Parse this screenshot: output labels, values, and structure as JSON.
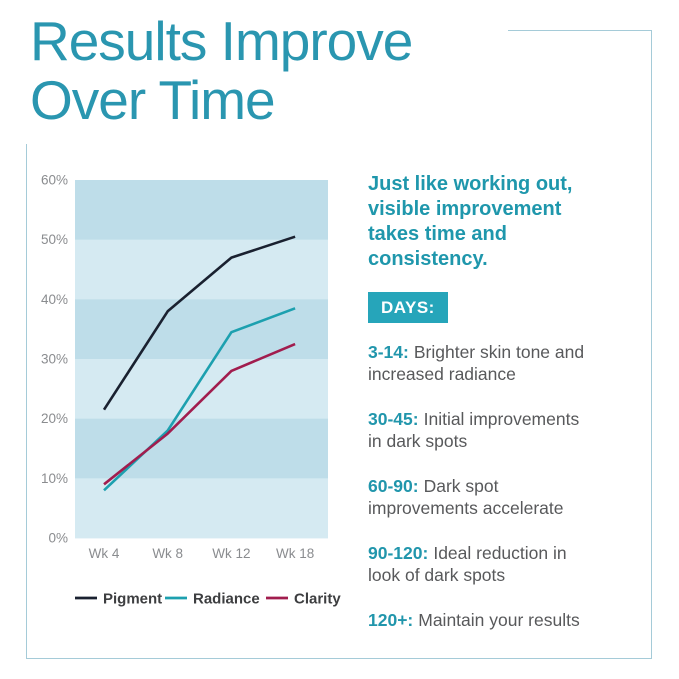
{
  "header": {
    "title": "Results Improve\nOver Time"
  },
  "panel": {
    "intro": "Just like working out,\nvisible improvement\ntakes time and\nconsistency.",
    "badge": "DAYS:",
    "items": [
      {
        "label": "3-14:",
        "text": "Brighter skin tone and\nincreased radiance"
      },
      {
        "label": "30-45:",
        "text": "Initial improvements\nin dark spots"
      },
      {
        "label": "60-90:",
        "text": "Dark spot\nimprovements accelerate"
      },
      {
        "label": "90-120:",
        "text": "Ideal reduction in\nlook of dark spots"
      },
      {
        "label": "120+:",
        "text": "Maintain your results"
      }
    ]
  },
  "colors": {
    "title_teal": "#2a96b0",
    "text_teal": "#2196ac",
    "badge_teal": "#26a5ba",
    "body_gray": "#58595b",
    "axis_gray": "#8a8c8f",
    "frame_border": "#a5cbd8"
  },
  "chart_data": {
    "type": "line",
    "title": "",
    "xlabel": "",
    "ylabel": "",
    "categories": [
      "Wk 4",
      "Wk 8",
      "Wk 12",
      "Wk 18"
    ],
    "yticks": [
      "60%",
      "50%",
      "40%",
      "30%",
      "20%",
      "10%",
      "0%"
    ],
    "ylim": [
      0,
      60
    ],
    "grid": "banded-horizontal",
    "band_colors": [
      "#bedde9",
      "#d5eaf2"
    ],
    "legend_position": "bottom",
    "series": [
      {
        "name": "Pigment",
        "color": "#1a2130",
        "values": [
          21.5,
          38,
          47,
          50.5
        ]
      },
      {
        "name": "Radiance",
        "color": "#1da0af",
        "values": [
          8,
          18,
          34.5,
          38.5
        ]
      },
      {
        "name": "Clarity",
        "color": "#a11d4e",
        "values": [
          9,
          17.5,
          28,
          32.5
        ]
      }
    ]
  }
}
